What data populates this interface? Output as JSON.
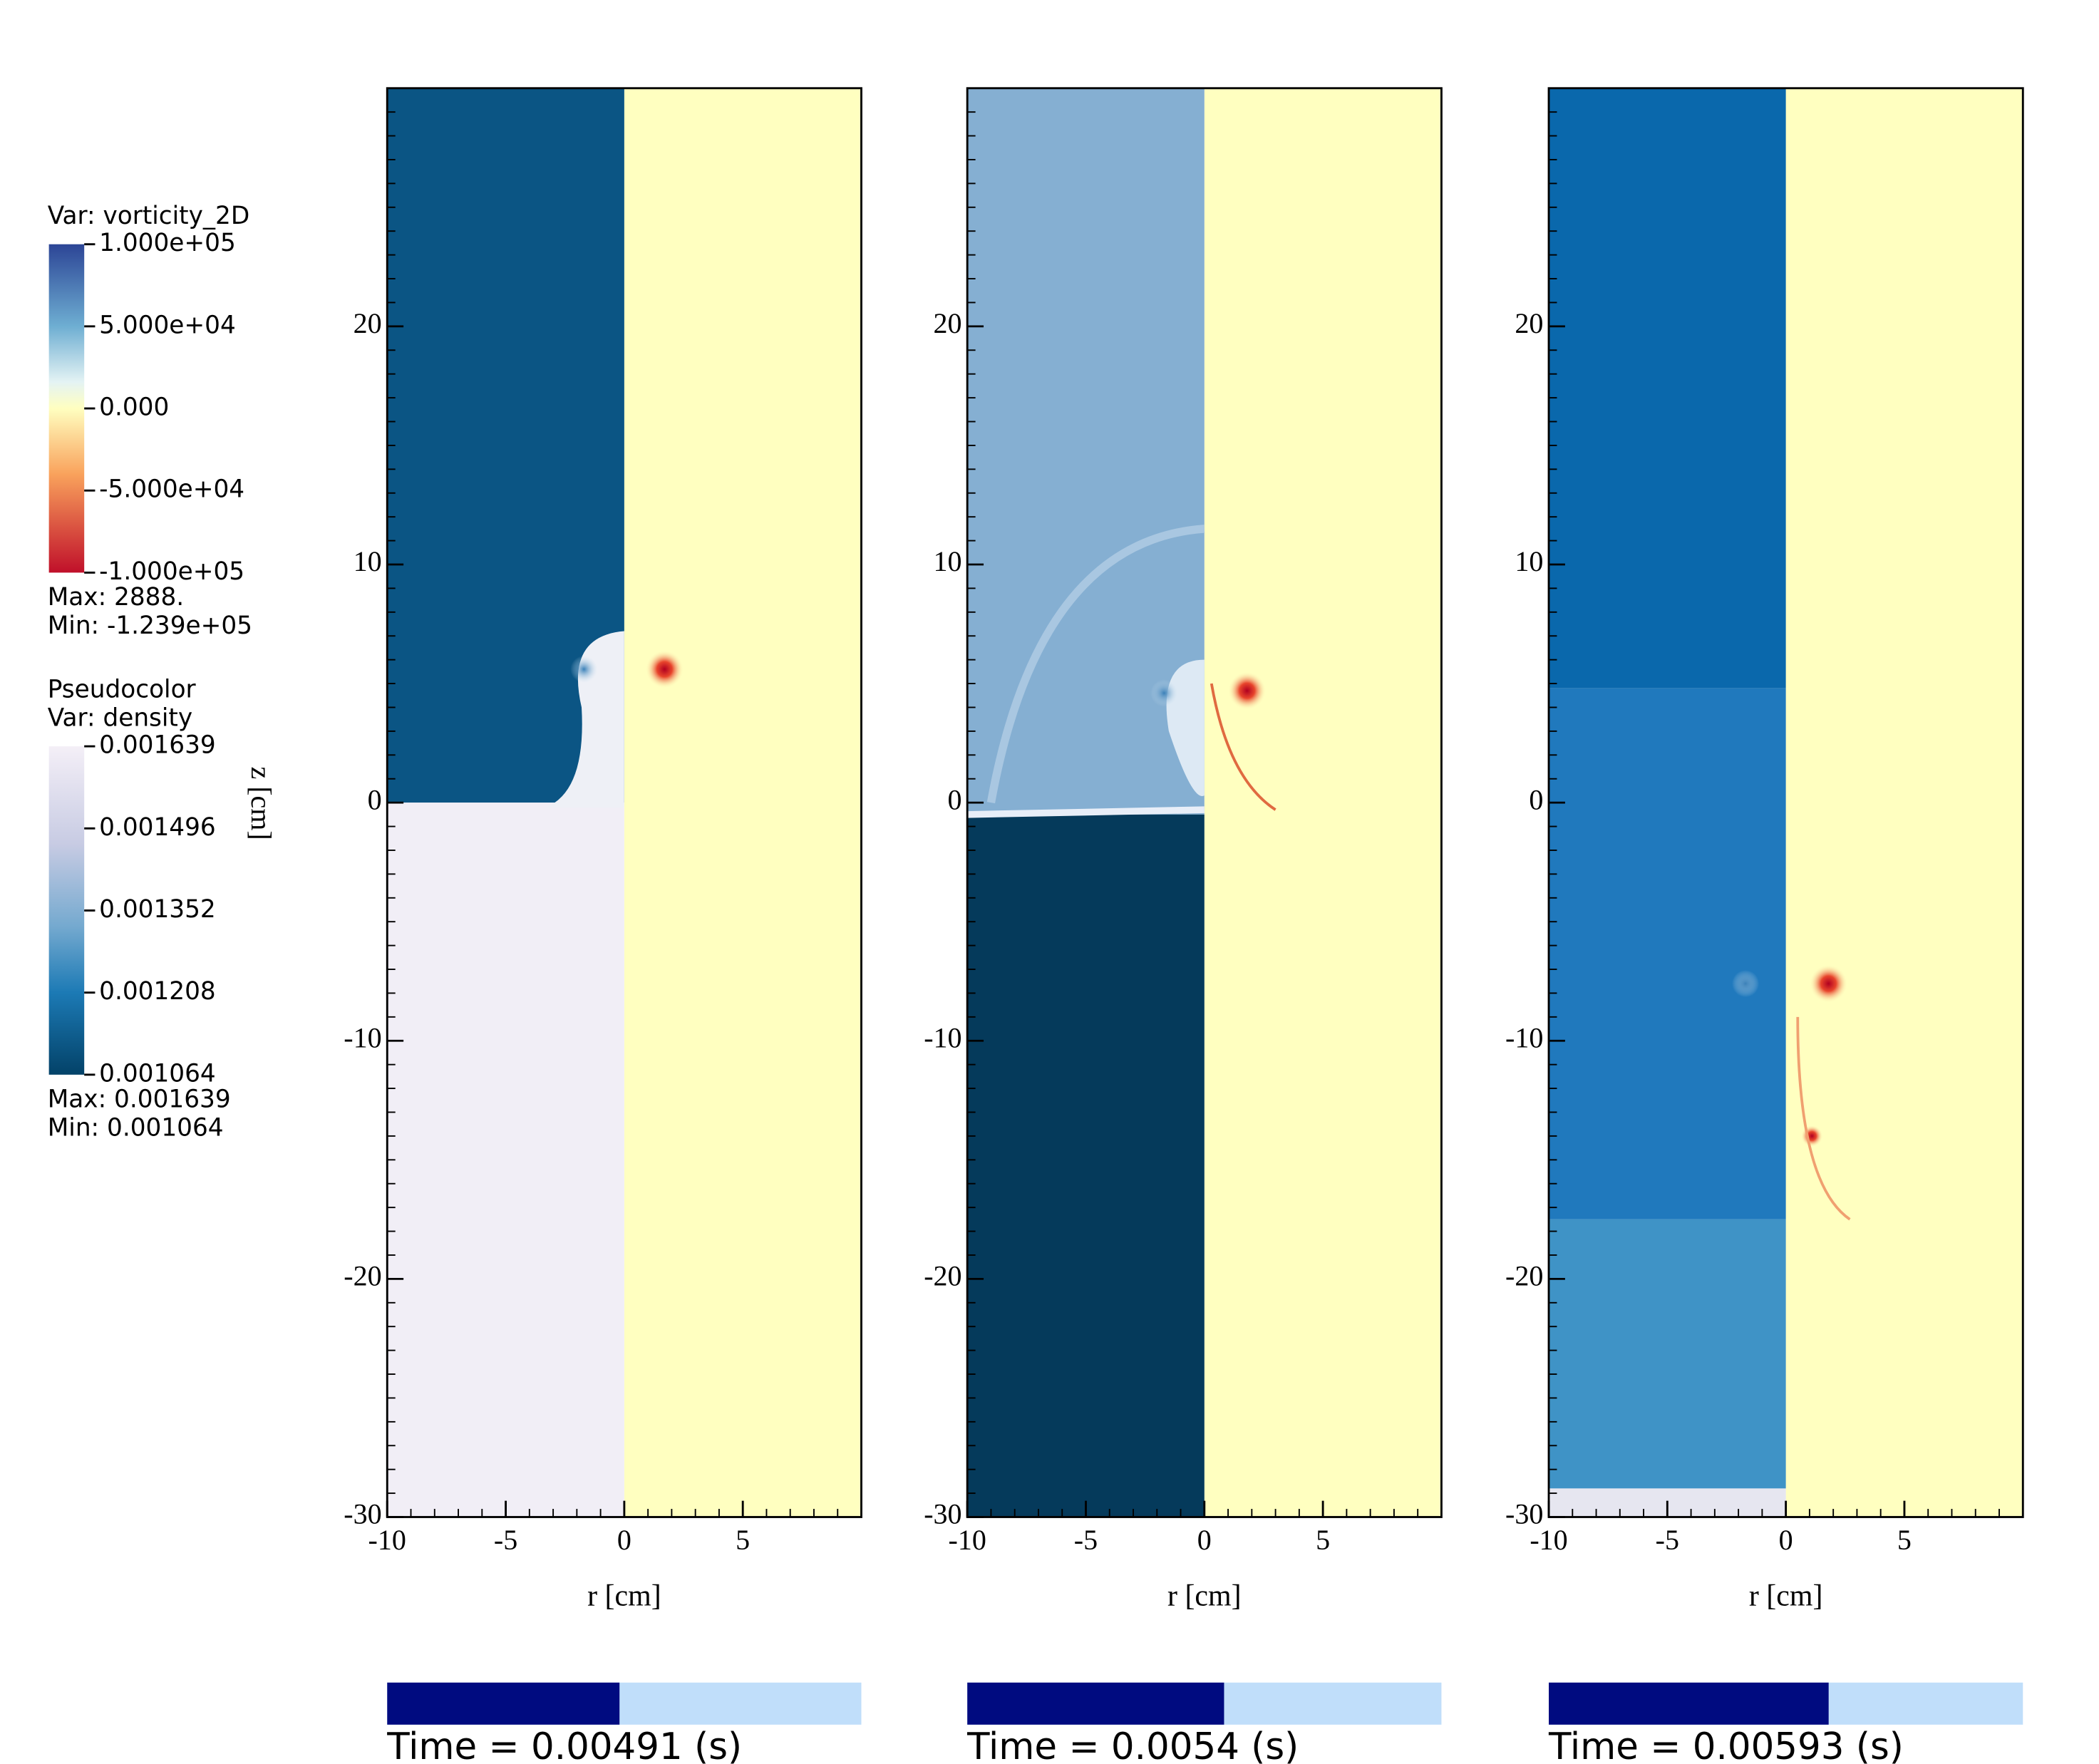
{
  "chart_data": [
    {
      "type": "field",
      "xlabel": "r [cm]",
      "ylabel": "z [cm]",
      "xlim": [
        -10,
        10
      ],
      "ylim": [
        -30,
        30
      ],
      "xticks": [
        -10,
        -5,
        0,
        5
      ],
      "yticks": [
        -30,
        -20,
        -10,
        0,
        10,
        20
      ],
      "time": "Time = 0.00491 (s)"
    },
    {
      "type": "field",
      "xlabel": "r [cm]",
      "xlim": [
        -10,
        10
      ],
      "ylim": [
        -30,
        30
      ],
      "xticks": [
        -10,
        -5,
        0,
        5
      ],
      "yticks": [
        -30,
        -20,
        -10,
        0,
        10,
        20
      ],
      "time": "Time = 0.0054 (s)"
    },
    {
      "type": "field",
      "xlabel": "r [cm]",
      "xlim": [
        -10,
        10
      ],
      "ylim": [
        -30,
        30
      ],
      "xticks": [
        -10,
        -5,
        0,
        5
      ],
      "yticks": [
        -30,
        -20,
        -10,
        0,
        10,
        20
      ],
      "time": "Time = 0.00593 (s)"
    }
  ],
  "legends": [
    {
      "title": "Var: vorticity_2D",
      "ticks": [
        "1.000e+05",
        "5.000e+04",
        "0.000",
        "-5.000e+04",
        "-1.000e+05"
      ],
      "max": "Max:  2888.",
      "min": "Min: -1.239e+05"
    },
    {
      "plot": "Pseudocolor",
      "title": "Var: density",
      "ticks": [
        "0.001639",
        "0.001496",
        "0.001352",
        "0.001208",
        "0.001064"
      ],
      "max": "Max: 0.001639",
      "min": "Min: 0.001064"
    }
  ]
}
